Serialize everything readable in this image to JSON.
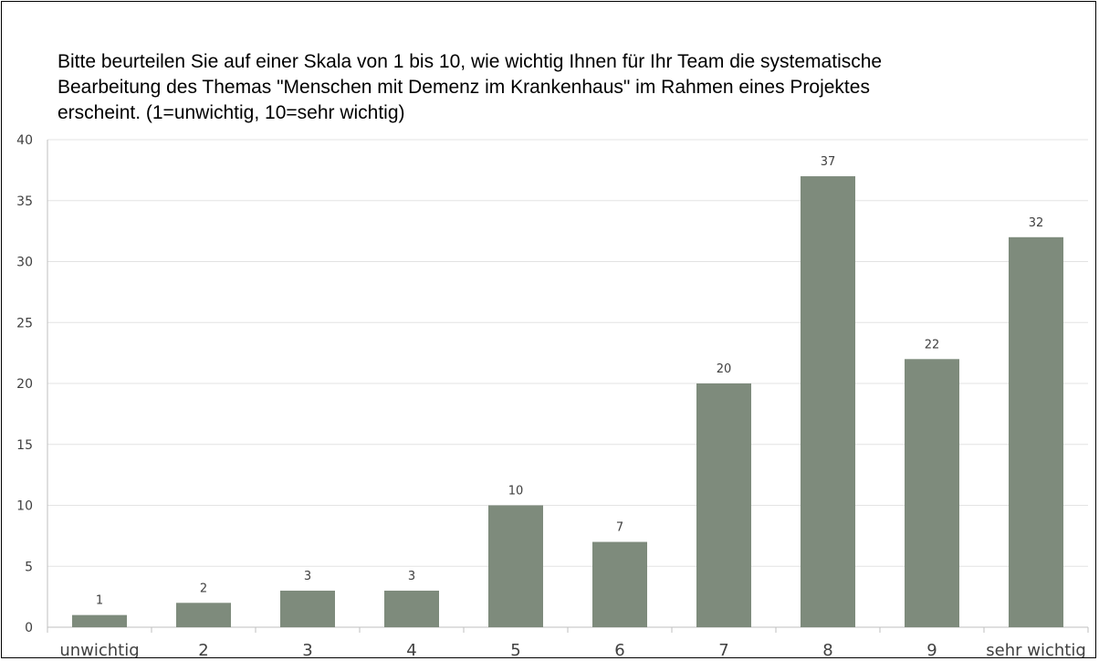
{
  "chart_data": {
    "type": "bar",
    "title": "Bitte beurteilen Sie auf einer Skala von 1 bis 10, wie wichtig Ihnen für Ihr Team die systematische\nBearbeitung des Themas \"Menschen mit Demenz im Krankenhaus\" im Rahmen eines Projektes\nerscheint.  (1=unwichtig, 10=sehr wichtig)",
    "categories": [
      "unwichtig",
      "2",
      "3",
      "4",
      "5",
      "6",
      "7",
      "8",
      "9",
      "sehr wichtig"
    ],
    "values": [
      1,
      2,
      3,
      3,
      10,
      7,
      20,
      37,
      22,
      32
    ],
    "ylim": [
      0,
      40
    ],
    "yticks": [
      0,
      5,
      10,
      15,
      20,
      25,
      30,
      35,
      40
    ],
    "xlabel": "",
    "ylabel": "",
    "grid": true,
    "legend": "none",
    "bar_color": "#7e8b7c",
    "grid_color": "#e3e3e3",
    "axis_color": "#bfbfbf"
  }
}
